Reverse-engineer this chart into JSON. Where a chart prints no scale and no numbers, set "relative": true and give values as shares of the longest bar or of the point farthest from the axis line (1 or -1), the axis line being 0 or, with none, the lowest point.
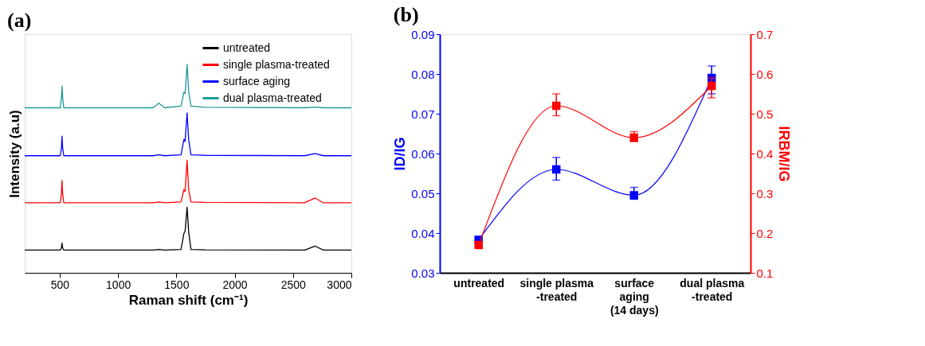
{
  "chart_data": [
    {
      "type": "line",
      "title": "(a)",
      "xlabel": "Raman shift (cm⁻¹)",
      "ylabel": "Intensity (a.u)",
      "relative": true,
      "legend": "top right",
      "tick_labels": "x",
      "grid": false,
      "xlim": [
        200,
        3000
      ],
      "xticks": [
        500,
        1000,
        1500,
        2000,
        2500,
        3000
      ],
      "x": [
        200,
        505,
        515,
        520,
        525,
        535,
        1300,
        1350,
        1400,
        1540,
        1565,
        1575,
        1592,
        1605,
        1625,
        1750,
        2600,
        2690,
        2760,
        3000
      ],
      "series": [
        {
          "name": "untreated",
          "color": "#000000",
          "values": [
            0.109,
            0.109,
            0.12,
            0.143,
            0.12,
            0.109,
            0.109,
            0.112,
            0.109,
            0.112,
            0.19,
            0.2,
            0.315,
            0.2,
            0.112,
            0.11,
            0.109,
            0.128,
            0.109,
            0.109
          ]
        },
        {
          "name": "single plasma-treated",
          "color": "#ff0000",
          "values": [
            0.336,
            0.336,
            0.38,
            0.443,
            0.38,
            0.336,
            0.336,
            0.34,
            0.336,
            0.34,
            0.4,
            0.39,
            0.54,
            0.4,
            0.34,
            0.338,
            0.336,
            0.359,
            0.336,
            0.336
          ]
        },
        {
          "name": "surface aging",
          "color": "#0000ff",
          "values": [
            0.562,
            0.562,
            0.6,
            0.656,
            0.6,
            0.562,
            0.562,
            0.566,
            0.562,
            0.566,
            0.641,
            0.63,
            0.768,
            0.64,
            0.566,
            0.564,
            0.562,
            0.572,
            0.562,
            0.562
          ]
        },
        {
          "name": "dual plasma-treated",
          "color": "#1a9a96",
          "values": [
            0.792,
            0.792,
            0.84,
            0.897,
            0.84,
            0.792,
            0.792,
            0.814,
            0.792,
            0.8,
            0.867,
            0.86,
            1.0,
            0.87,
            0.8,
            0.794,
            0.792,
            0.795,
            0.792,
            0.792
          ]
        }
      ]
    },
    {
      "type": "line",
      "title": "(b)",
      "ylabel": "ID/IG",
      "y2label": "IRBM/IG",
      "marker": "square",
      "grid": false,
      "categories": [
        "untreated",
        "single plasma\n-treated",
        "surface\naging\n(14 days)",
        "dual plasma\n-treated"
      ],
      "ylim": [
        0.03,
        0.09
      ],
      "yticks": [
        0.03,
        0.04,
        0.05,
        0.06,
        0.07,
        0.08,
        0.09
      ],
      "y2lim": [
        0.1,
        0.7
      ],
      "y2ticks": [
        0.1,
        0.2,
        0.3,
        0.4,
        0.5,
        0.6,
        0.7
      ],
      "series": [
        {
          "color": "#0000ff",
          "axis": "y",
          "values": [
            0.0383,
            0.056,
            0.0495,
            0.079
          ],
          "errors": [
            null,
            [
              0.0533,
              0.059
            ],
            [
              0.0485,
              0.0515
            ],
            [
              0.075,
              0.082
            ]
          ]
        },
        {
          "color": "#ff0000",
          "axis": "y2",
          "values": [
            0.17,
            0.52,
            0.44,
            0.57
          ],
          "errors": [
            null,
            [
              0.495,
              0.55
            ],
            [
              0.43,
              0.455
            ],
            [
              0.54,
              0.59
            ]
          ]
        }
      ]
    }
  ]
}
